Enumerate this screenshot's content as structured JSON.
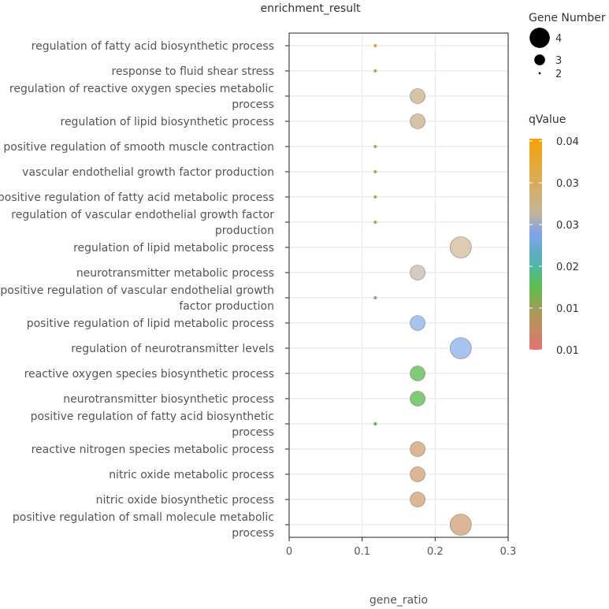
{
  "chart_data": {
    "type": "scatter",
    "title": "enrichment_result",
    "xlabel": "gene_ratio",
    "ylabel": "",
    "xlim": [
      0,
      0.3
    ],
    "xticks": [
      0,
      0.1,
      0.2,
      0.3
    ],
    "xtick_labels": [
      "0",
      "0.1",
      "0.2",
      "0.3"
    ],
    "size_legend": {
      "title": "Gene Number",
      "entries": [
        {
          "label": "4",
          "value": 4
        },
        {
          "label": "3",
          "value": 3
        },
        {
          "label": "2",
          "value": 2
        }
      ]
    },
    "color_legend": {
      "title": "qValue",
      "tick_labels": [
        "0.04",
        "0.03",
        "0.03",
        "0.02",
        "0.01",
        "0.01"
      ],
      "stops": [
        "#f5a20a",
        "#c4b495",
        "#7fa3ee",
        "#4fb5a6",
        "#5cbf50",
        "#a79a57",
        "#e57373"
      ]
    },
    "points": [
      {
        "term": "regulation of fatty acid biosynthetic process",
        "gene_ratio": 0.118,
        "gene_number": 2,
        "color": "#e8a23c"
      },
      {
        "term": "response to fluid shear stress",
        "gene_ratio": 0.118,
        "gene_number": 2,
        "color": "#8fba6e"
      },
      {
        "term": "regulation of reactive oxygen species metabolic process",
        "gene_ratio": 0.176,
        "gene_number": 3,
        "color": "#d9c3a8"
      },
      {
        "term": "regulation of lipid biosynthetic process",
        "gene_ratio": 0.176,
        "gene_number": 3,
        "color": "#d9c3a8"
      },
      {
        "term": "positive regulation of smooth muscle contraction",
        "gene_ratio": 0.118,
        "gene_number": 2,
        "color": "#8fba6e"
      },
      {
        "term": "vascular endothelial growth factor production",
        "gene_ratio": 0.118,
        "gene_number": 2,
        "color": "#8fba6e"
      },
      {
        "term": "positive regulation of fatty acid metabolic process",
        "gene_ratio": 0.118,
        "gene_number": 2,
        "color": "#8fba6e"
      },
      {
        "term": "regulation of vascular endothelial growth factor production",
        "gene_ratio": 0.118,
        "gene_number": 2,
        "color": "#8fba6e"
      },
      {
        "term": "regulation of lipid metabolic process",
        "gene_ratio": 0.235,
        "gene_number": 4,
        "color": "#dfcbb3"
      },
      {
        "term": "neurotransmitter metabolic process",
        "gene_ratio": 0.176,
        "gene_number": 3,
        "color": "#d6cbc0"
      },
      {
        "term": "positive regulation of vascular endothelial growth factor production",
        "gene_ratio": 0.118,
        "gene_number": 2,
        "color": "#a99aaa"
      },
      {
        "term": "positive regulation of lipid metabolic process",
        "gene_ratio": 0.176,
        "gene_number": 3,
        "color": "#a9c3f0"
      },
      {
        "term": "regulation of neurotransmitter levels",
        "gene_ratio": 0.235,
        "gene_number": 4,
        "color": "#a9c3f0"
      },
      {
        "term": "reactive oxygen species biosynthetic process",
        "gene_ratio": 0.176,
        "gene_number": 3,
        "color": "#7fcc78"
      },
      {
        "term": "neurotransmitter biosynthetic process",
        "gene_ratio": 0.176,
        "gene_number": 3,
        "color": "#7fcc78"
      },
      {
        "term": "positive regulation of fatty acid biosynthetic process",
        "gene_ratio": 0.118,
        "gene_number": 2,
        "color": "#5cb85c"
      },
      {
        "term": "reactive nitrogen species metabolic process",
        "gene_ratio": 0.176,
        "gene_number": 3,
        "color": "#dbb797"
      },
      {
        "term": "nitric oxide metabolic process",
        "gene_ratio": 0.176,
        "gene_number": 3,
        "color": "#dbb797"
      },
      {
        "term": "nitric oxide biosynthetic process",
        "gene_ratio": 0.176,
        "gene_number": 3,
        "color": "#dbb797"
      },
      {
        "term": "positive regulation of small molecule metabolic process",
        "gene_ratio": 0.235,
        "gene_number": 4,
        "color": "#dbb797"
      }
    ]
  }
}
